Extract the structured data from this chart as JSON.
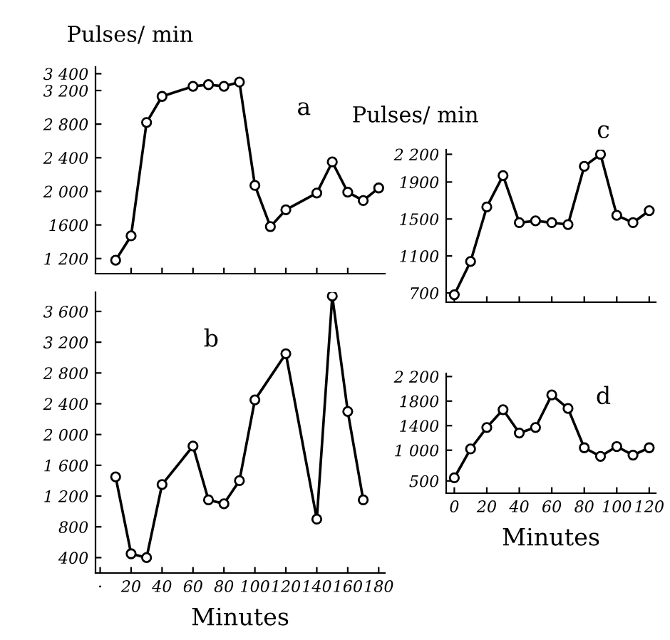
{
  "chart_data": [
    {
      "type": "line",
      "title": "a",
      "ylabel": "Pulses/ min",
      "x": [
        10,
        20,
        30,
        40,
        60,
        70,
        80,
        90,
        100,
        110,
        120,
        140,
        150,
        160,
        170,
        180
      ],
      "series": [
        {
          "color": "#000000",
          "values": [
            1180,
            1470,
            2820,
            3130,
            3250,
            3270,
            3250,
            3300,
            2070,
            1580,
            1780,
            1980,
            2350,
            1990,
            1890,
            2040
          ]
        }
      ],
      "xlim": [
        -3,
        184
      ],
      "xticks": [
        {
          "value": 20,
          "label": null
        },
        {
          "value": 40,
          "label": null
        },
        {
          "value": 60,
          "label": null
        },
        {
          "value": 80,
          "label": null
        },
        {
          "value": 100,
          "label": null
        },
        {
          "value": 120,
          "label": null
        },
        {
          "value": 140,
          "label": null
        },
        {
          "value": 160,
          "label": null
        }
      ],
      "ylim": [
        1020,
        3480
      ],
      "yticks": [
        {
          "value": 1200,
          "label": "1 200"
        },
        1600,
        {
          "value": 2000,
          "label": "2 000"
        },
        {
          "value": 2400,
          "label": "2 400"
        },
        {
          "value": 2800,
          "label": "2 800"
        },
        {
          "value": 3200,
          "label": "3 200"
        },
        {
          "value": 3400,
          "label": "3 400"
        }
      ],
      "tick_labels": "y",
      "marker": "circle",
      "line_style": "solid",
      "grid": false,
      "legend": false
    },
    {
      "type": "line",
      "title": "b",
      "xlabel": "Minutes",
      "x": [
        10,
        20,
        30,
        40,
        60,
        70,
        80,
        90,
        100,
        120,
        140,
        150,
        160,
        170
      ],
      "series": [
        {
          "color": "#000000",
          "values": [
            1450,
            450,
            400,
            1350,
            1850,
            1150,
            1100,
            1400,
            2450,
            3050,
            900,
            3800,
            2300,
            1150
          ]
        }
      ],
      "xlim": [
        -3,
        184
      ],
      "xticks": [
        {
          "value": 0,
          "label": "·"
        },
        20,
        40,
        60,
        80,
        100,
        120,
        140,
        160,
        180
      ],
      "ylim": [
        200,
        3850
      ],
      "yticks": [
        400,
        800,
        {
          "value": 1200,
          "label": "1 200"
        },
        {
          "value": 1600,
          "label": "1 600"
        },
        {
          "value": 2000,
          "label": "2 000"
        },
        {
          "value": 2400,
          "label": "2 400"
        },
        {
          "value": 2800,
          "label": "2 800"
        },
        {
          "value": 3200,
          "label": "3 200"
        },
        {
          "value": 3600,
          "label": "3 600"
        }
      ],
      "marker": "circle",
      "line_style": "solid",
      "grid": false,
      "legend": false
    },
    {
      "type": "line",
      "title": "c",
      "ylabel": "Pulses/ min",
      "x": [
        0,
        10,
        20,
        30,
        40,
        50,
        60,
        70,
        80,
        90,
        100,
        110,
        120
      ],
      "series": [
        {
          "color": "#000000",
          "values": [
            680,
            1040,
            1630,
            1970,
            1460,
            1480,
            1460,
            1440,
            2070,
            2200,
            1540,
            1460,
            1590
          ]
        }
      ],
      "xlim": [
        -5,
        124
      ],
      "xticks": [
        {
          "value": 0,
          "label": null
        },
        {
          "value": 20,
          "label": null
        },
        {
          "value": 40,
          "label": null
        },
        {
          "value": 60,
          "label": null
        },
        {
          "value": 80,
          "label": null
        },
        {
          "value": 100,
          "label": null
        },
        {
          "value": 120,
          "label": null
        }
      ],
      "ylim": [
        600,
        2250
      ],
      "yticks": [
        700,
        1100,
        1500,
        1900,
        {
          "value": 2200,
          "label": "2 200"
        }
      ],
      "tick_labels": "y",
      "marker": "circle",
      "line_style": "solid",
      "grid": false,
      "legend": false
    },
    {
      "type": "line",
      "title": "d",
      "xlabel": "Minutes",
      "x": [
        0,
        10,
        20,
        30,
        40,
        50,
        60,
        70,
        80,
        90,
        100,
        110,
        120
      ],
      "series": [
        {
          "color": "#000000",
          "values": [
            550,
            1020,
            1370,
            1660,
            1280,
            1370,
            1900,
            1680,
            1040,
            900,
            1060,
            920,
            1040
          ]
        }
      ],
      "xlim": [
        -5,
        124
      ],
      "xticks": [
        0,
        20,
        40,
        60,
        80,
        100,
        120
      ],
      "ylim": [
        300,
        2250
      ],
      "yticks": [
        500,
        {
          "value": 1000,
          "label": "1 000"
        },
        1400,
        1800,
        {
          "value": 2200,
          "label": "2 200"
        }
      ],
      "marker": "circle",
      "line_style": "solid",
      "grid": false,
      "legend": false
    }
  ]
}
